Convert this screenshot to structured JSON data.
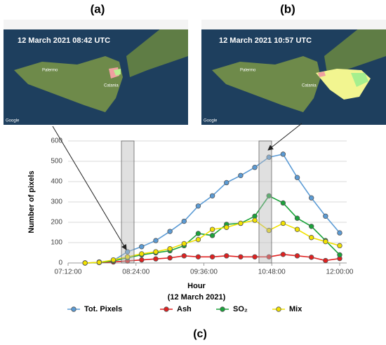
{
  "chart_data": {
    "type": "line",
    "panel_labels": [
      "(a)",
      "(b)",
      "(c)"
    ],
    "annotations": [
      "12 March 2021 08:42 UTC",
      "12 March 2021 10:57 UTC"
    ],
    "map_labels": [
      "Palermo",
      "Catania",
      "Google"
    ],
    "ylabel": "Number of pixels",
    "xlabel": "Hour",
    "xlabel_sub": "(12 March 2021)",
    "x": [
      7.5,
      7.75,
      8,
      8.25,
      8.5,
      8.75,
      9,
      9.25,
      9.5,
      9.75,
      10,
      10.25,
      10.5,
      10.75,
      11,
      11.25,
      11.5,
      11.75,
      12
    ],
    "series": [
      {
        "name": "Tot. Pixels",
        "color": "#5b9bd5",
        "values": [
          null,
          5,
          12,
          55,
          80,
          110,
          155,
          205,
          280,
          330,
          395,
          430,
          470,
          520,
          535,
          420,
          320,
          230,
          148
        ]
      },
      {
        "name": "Ash",
        "color": "#e02020",
        "values": [
          0,
          2,
          5,
          10,
          15,
          20,
          25,
          35,
          30,
          30,
          35,
          30,
          30,
          30,
          42,
          35,
          28,
          12,
          22
        ]
      },
      {
        "name": "SO₂",
        "color": "#1aa33a",
        "values": [
          0,
          2,
          10,
          25,
          40,
          50,
          60,
          85,
          145,
          135,
          190,
          195,
          230,
          330,
          295,
          220,
          180,
          110,
          40
        ]
      },
      {
        "name": "Mix",
        "color": "#f2e200",
        "values": [
          0,
          3,
          15,
          30,
          45,
          55,
          70,
          95,
          115,
          165,
          175,
          195,
          210,
          160,
          195,
          165,
          125,
          105,
          85
        ]
      }
    ],
    "xlim": [
      7.2,
      12
    ],
    "xticks": [
      {
        "value": 7.2,
        "label": "07:12:00"
      },
      {
        "value": 8.4,
        "label": "08:24:00"
      },
      {
        "value": 9.6,
        "label": "09:36:00"
      },
      {
        "value": 10.8,
        "label": "10:48:00"
      },
      {
        "value": 12,
        "label": "12:00:00"
      }
    ],
    "ylim": [
      0,
      600
    ],
    "yticks": [
      0,
      100,
      200,
      300,
      400,
      500,
      600
    ],
    "grid": true,
    "legend": "bottom"
  }
}
